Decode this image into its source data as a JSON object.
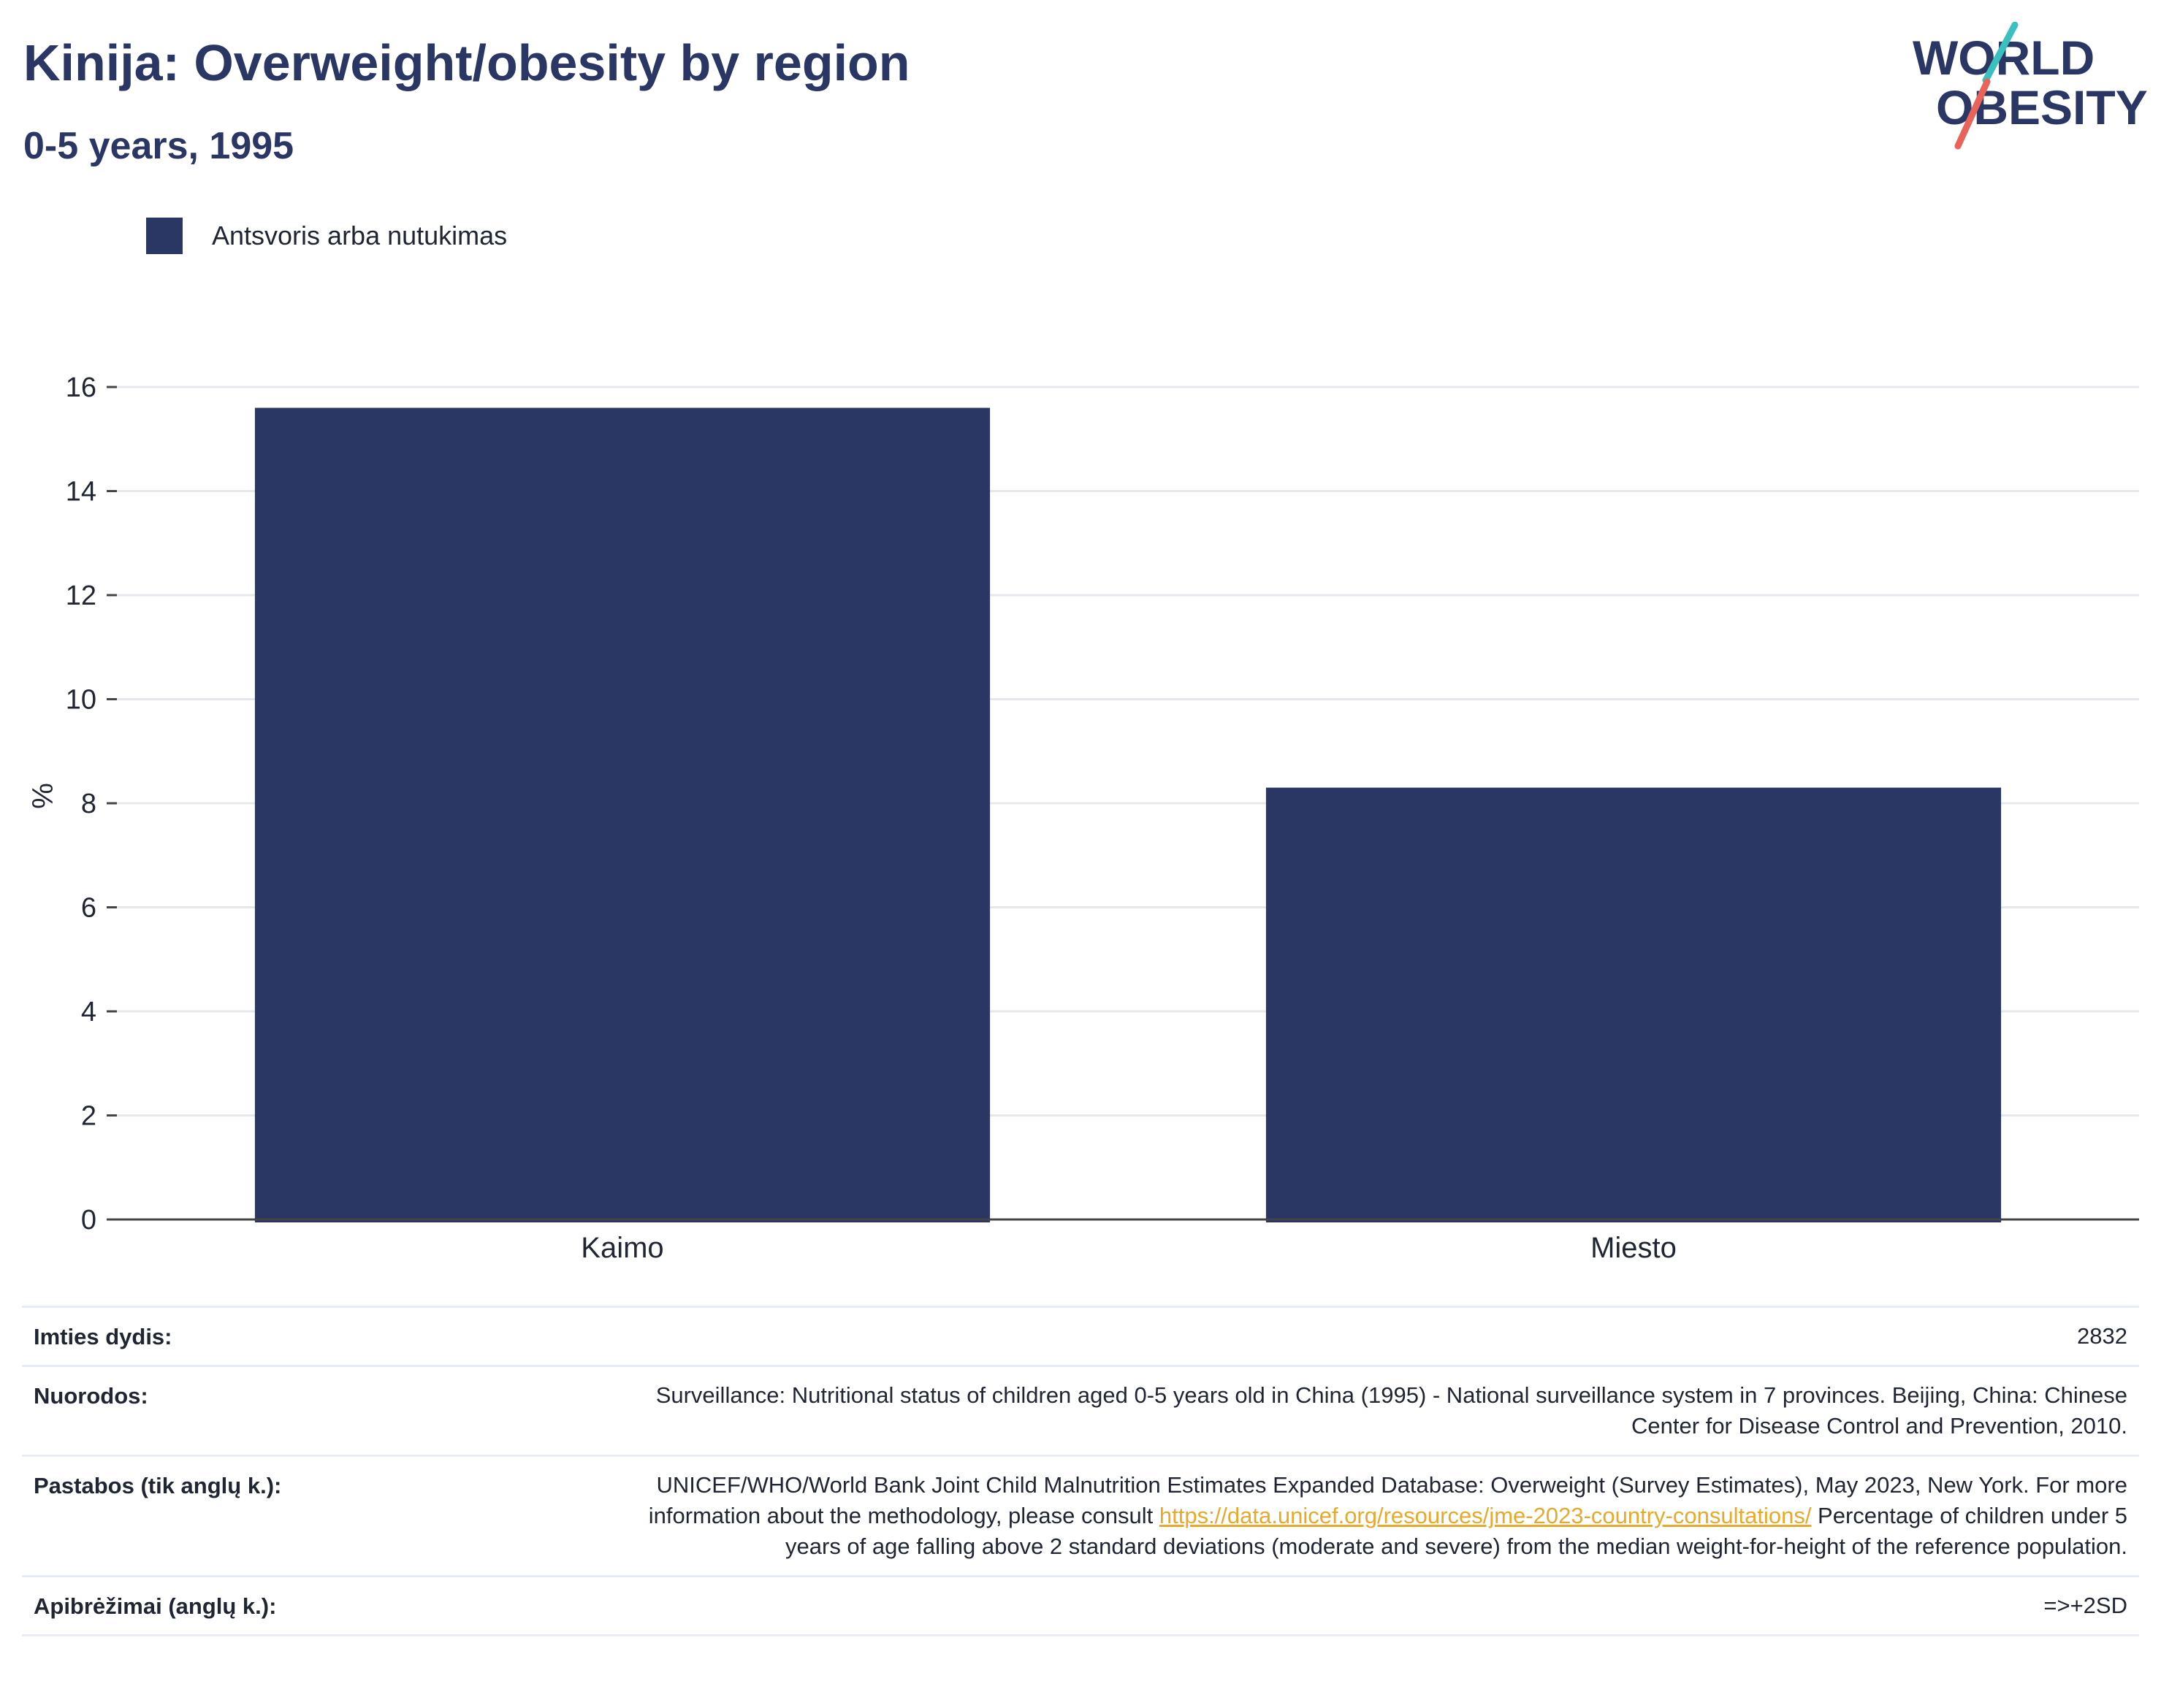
{
  "header": {
    "title": "Kinija: Overweight/obesity by region",
    "subtitle": "0-5 years, 1995"
  },
  "logo": {
    "line1": "WORLD",
    "line2": "OBESITY",
    "colors": {
      "text": "#2a3663",
      "slash_top": "#3bbfbf",
      "slash_bottom": "#e8635a"
    }
  },
  "legend": {
    "items": [
      {
        "label": "Antsvoris arba nutukimas",
        "color": "#2a3663"
      }
    ]
  },
  "chart_data": {
    "type": "bar",
    "categories": [
      "Kaimo",
      "Miesto"
    ],
    "series": [
      {
        "name": "Antsvoris arba nutukimas",
        "values": [
          15.6,
          8.3
        ]
      }
    ],
    "ylabel": "%",
    "xlabel": "",
    "ylim": [
      0,
      16
    ],
    "yticks": [
      0,
      2,
      4,
      6,
      8,
      10,
      12,
      14,
      16
    ],
    "grid": true,
    "legend_position": "top-left",
    "bar_color": "#2a3663"
  },
  "info": {
    "sample_size": {
      "label": "Imties dydis:",
      "value": "2832"
    },
    "references": {
      "label": "Nuorodos:",
      "value": "Surveillance: Nutritional status of children aged 0-5 years old in China (1995) - National surveillance system in 7 provinces. Beijing, China: Chinese Center for Disease Control and Prevention, 2010."
    },
    "notes": {
      "label": "Pastabos (tik anglų k.):",
      "text_before_link": "UNICEF/WHO/World Bank Joint Child Malnutrition Estimates Expanded Database: Overweight (Survey Estimates), May 2023, New York. For more information about the methodology, please consult ",
      "link": "https://data.unicef.org/resources/jme-2023-country-consultations/",
      "text_after_link": " Percentage of children under 5 years of age falling above 2 standard deviations (moderate and severe) from the median weight-for-height of the reference population."
    },
    "definitions": {
      "label": "Apibrėžimai (anglų k.):",
      "value": "=>+2SD"
    }
  }
}
